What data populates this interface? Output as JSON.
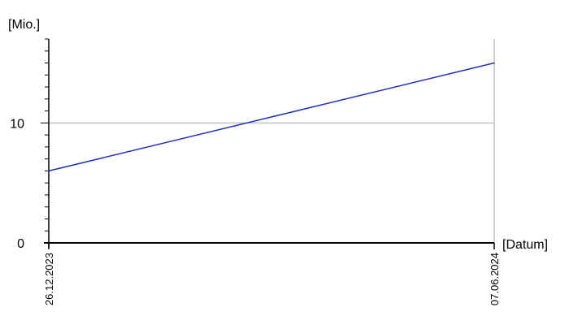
{
  "chart_data": {
    "type": "line",
    "title": "",
    "ylabel": "[Mio.]",
    "xlabel": "[Datum]",
    "x": [
      "26.12.2023",
      "07.06.2024"
    ],
    "series": [
      {
        "values": [
          6.0,
          15.0
        ]
      }
    ],
    "ylim": [
      0,
      17
    ],
    "yticks": [
      {
        "value": 0,
        "label": "0"
      },
      {
        "value": 10,
        "label": "10"
      }
    ],
    "y_minor_step": 1,
    "xticks": [
      "26.12.2023",
      "07.06.2024"
    ],
    "grid": "horizontal at 10",
    "colors": {
      "series": "#1f2fbf",
      "grid": "#c0c0c0",
      "axis": "#000000"
    }
  }
}
